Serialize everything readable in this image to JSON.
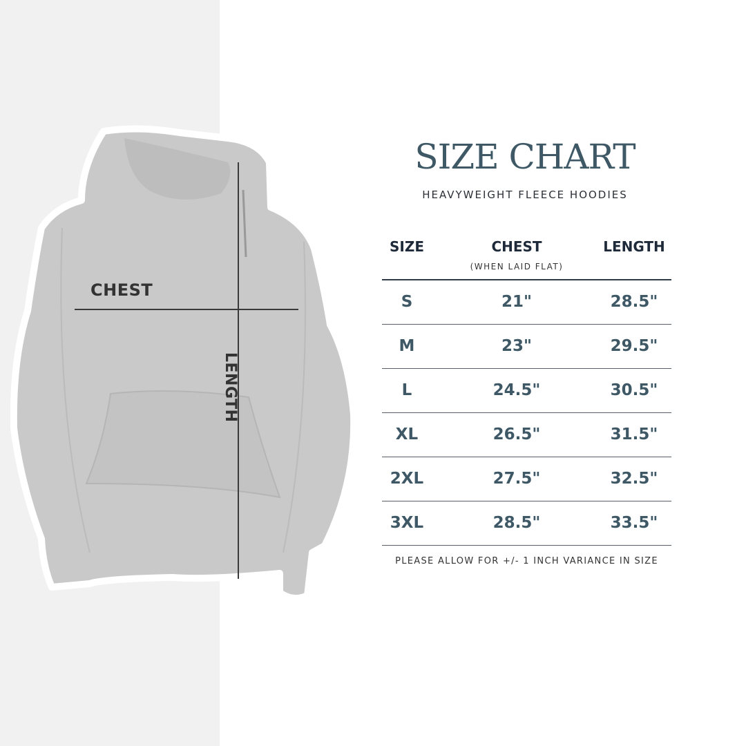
{
  "header": {
    "title": "SIZE CHART",
    "subtitle": "HEAVYWEIGHT FLEECE HOODIES"
  },
  "diagram": {
    "chest_label": "CHEST",
    "length_label": "LENGTH"
  },
  "table": {
    "columns": [
      "SIZE",
      "CHEST",
      "LENGTH"
    ],
    "chest_note": "(WHEN LAID FLAT)",
    "rows": [
      [
        "S",
        "21\"",
        "28.5\""
      ],
      [
        "M",
        "23\"",
        "29.5\""
      ],
      [
        "L",
        "24.5\"",
        "30.5\""
      ],
      [
        "XL",
        "26.5\"",
        "31.5\""
      ],
      [
        "2XL",
        "27.5\"",
        "32.5\""
      ],
      [
        "3XL",
        "28.5\"",
        "33.5\""
      ]
    ]
  },
  "footer": "PLEASE ALLOW FOR +/- 1 INCH VARIANCE IN SIZE",
  "colors": {
    "title": "#3e5866",
    "values": "#3e5866",
    "header": "#1e2a3a",
    "left_panel": "#f1f1f1",
    "hoodie": "#c9c9c9"
  }
}
